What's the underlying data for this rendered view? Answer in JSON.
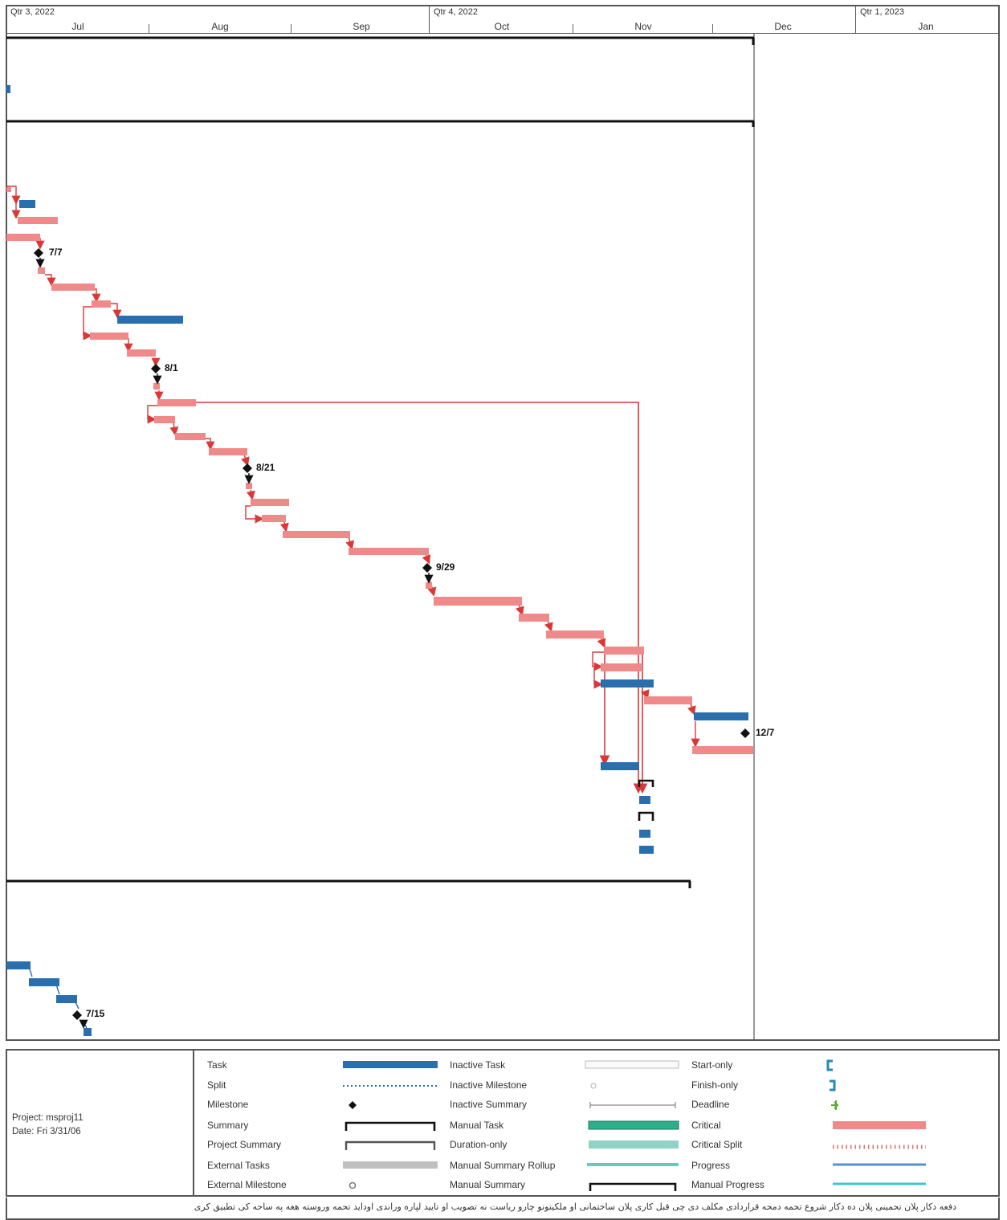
{
  "timescale": {
    "quarters": [
      "Qtr 3, 2022",
      "Qtr 4, 2022",
      "Qtr 1, 2023"
    ],
    "months": [
      "Jul",
      "Aug",
      "Sep",
      "Oct",
      "Nov",
      "Dec",
      "Jan"
    ]
  },
  "milestones": {
    "m1": "7/7",
    "m2": "8/1",
    "m3": "8/21",
    "m4": "9/29",
    "m5": "12/7",
    "m6": "7/15"
  },
  "legend": {
    "project_line": "Project: msproj11",
    "date_line": "Date: Fri 3/31/06",
    "col1": [
      "Task",
      "Split",
      "Milestone",
      "Summary",
      "Project Summary",
      "External Tasks",
      "External Milestone"
    ],
    "col2": [
      "Inactive Task",
      "Inactive Milestone",
      "Inactive Summary",
      "Manual Task",
      "Duration-only",
      "Manual Summary Rollup",
      "Manual Summary"
    ],
    "col3": [
      "Start-only",
      "Finish-only",
      "Deadline",
      "Critical",
      "Critical Split",
      "Progress",
      "Manual Progress"
    ]
  },
  "colors": {
    "task": "#2a6fad",
    "critical": "#f08a8a",
    "link": "#d93838",
    "manual_task": "#2fae8e",
    "duration_only": "#8fd3c4",
    "progress": "#5b8fd0",
    "manual_progress": "#3fc4d4",
    "external": "#c0c0c0"
  },
  "footer": {
    "note": "دفعه دکار پلان تحمینی پلان ده دکار شروع تحمه دمحه قراردادی مکلف دی چی قبل کاری پلان ساختمانی او ملکیتونو چارو ریاست نه تصویب او تایید لپاره وراندی اوداید تحمه وروسته هغه په ساحه کی تطبیق کری"
  }
}
